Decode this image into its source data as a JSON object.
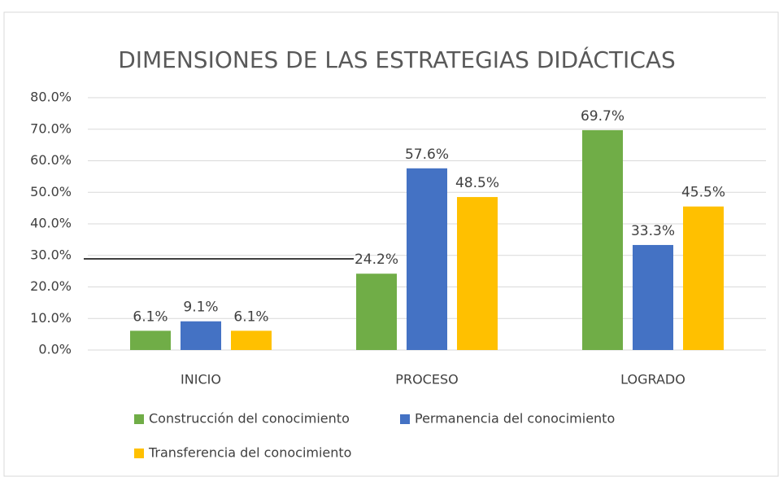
{
  "chart_data": {
    "type": "bar",
    "title": "DIMENSIONES DE LAS ESTRATEGIAS DIDÁCTICAS",
    "categories": [
      "INICIO",
      "PROCESO",
      "LOGRADO"
    ],
    "series": [
      {
        "name": "Construcción del conocimiento",
        "color": "#70ad47",
        "values": [
          6.1,
          24.2,
          69.7
        ],
        "value_labels": [
          "6.1%",
          "24.2%",
          "69.7%"
        ]
      },
      {
        "name": "Permanencia del conocimiento",
        "color": "#4472c4",
        "values": [
          9.1,
          57.6,
          33.3
        ],
        "value_labels": [
          "9.1%",
          "57.6%",
          "33.3%"
        ]
      },
      {
        "name": "Transferencia del conocimiento",
        "color": "#ffc000",
        "values": [
          6.1,
          48.5,
          45.5
        ],
        "value_labels": [
          "6.1%",
          "48.5%",
          "45.5%"
        ]
      }
    ],
    "ylim": [
      0,
      80
    ],
    "yticks": [
      {
        "value": 0,
        "label": "0.0%"
      },
      {
        "value": 10,
        "label": "10.0%"
      },
      {
        "value": 20,
        "label": "20.0%"
      },
      {
        "value": 30,
        "label": "30.0%"
      },
      {
        "value": 40,
        "label": "40.0%"
      },
      {
        "value": 50,
        "label": "50.0%"
      },
      {
        "value": 60,
        "label": "60.0%"
      },
      {
        "value": 70,
        "label": "70.0%"
      },
      {
        "value": 80,
        "label": "80.0%"
      }
    ],
    "grid": true,
    "legend": "bottom"
  }
}
